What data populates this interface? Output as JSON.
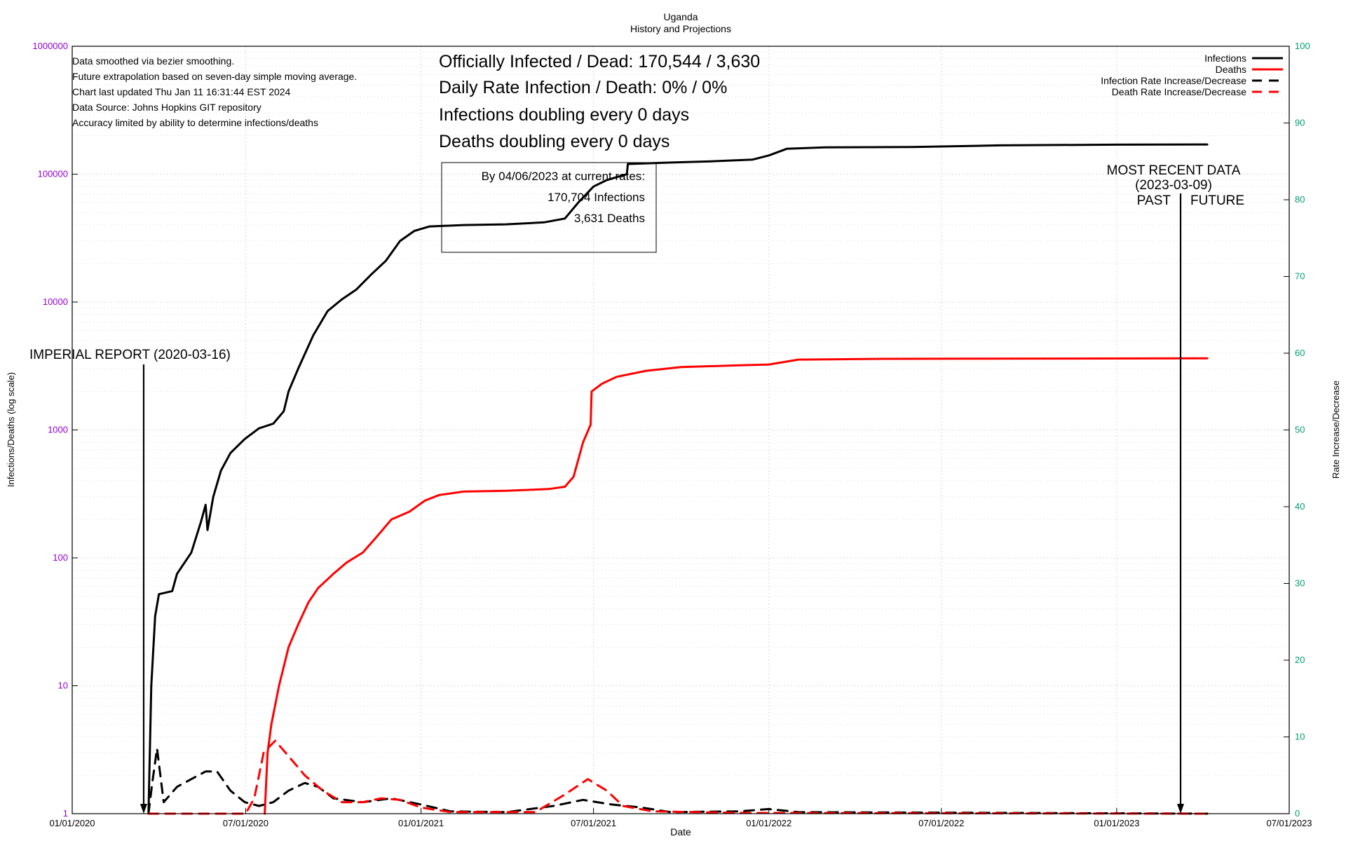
{
  "chart_data": {
    "type": "line",
    "title": "Uganda",
    "subtitle": "History and Projections",
    "xlabel": "Date",
    "ylabel": "Infections/Deaths (log scale)",
    "y2label": "Rate Increase/Decrease",
    "x_range": [
      "2020-01-01",
      "2023-07-01"
    ],
    "x_ticks": [
      "01/01/2020",
      "07/01/2020",
      "01/01/2021",
      "07/01/2021",
      "01/01/2022",
      "07/01/2022",
      "01/01/2023",
      "07/01/2023"
    ],
    "y_scale": "log",
    "ylim": [
      1,
      1000000
    ],
    "y_ticks": [
      "1",
      "10",
      "100",
      "1000",
      "10000",
      "100000",
      "1000000"
    ],
    "y2lim": [
      0,
      100
    ],
    "y2_ticks": [
      "0",
      "10",
      "20",
      "30",
      "40",
      "50",
      "60",
      "70",
      "80",
      "90",
      "100"
    ],
    "grid": true,
    "legend_position": "top-right",
    "notes": [
      "Data smoothed via bezier smoothing.",
      "Future extrapolation based on seven-day simple moving average.",
      "Chart last updated Thu Jan 11 16:31:44 EST 2024",
      "Data Source: Johns Hopkins GIT repository",
      "Accuracy limited by ability to determine infections/deaths"
    ],
    "headline": [
      "Officially Infected / Dead:  170,544 / 3,630",
      "Daily Rate Infection / Death:  0% / 0%",
      "Infections doubling every 0 days",
      "Deaths doubling every 0 days"
    ],
    "projection_box": [
      "By 04/06/2023 at current rates:",
      "170,704 Infections",
      "3,631 Deaths"
    ],
    "annotations": {
      "imperial": {
        "label": "IMPERIAL REPORT (2020-03-16)",
        "date": "2020-03-16"
      },
      "recent": {
        "line1": "MOST RECENT DATA",
        "line2": "(2023-03-09)",
        "past": "PAST",
        "future": "FUTURE",
        "date": "2023-03-09"
      }
    },
    "series": [
      {
        "name": "Infections",
        "axis": "left",
        "color": "#000000",
        "dash": "solid",
        "points": [
          [
            "2020-03-21",
            1
          ],
          [
            "2020-03-24",
            10
          ],
          [
            "2020-03-28",
            35
          ],
          [
            "2020-04-01",
            52
          ],
          [
            "2020-04-15",
            55
          ],
          [
            "2020-04-20",
            75
          ],
          [
            "2020-05-05",
            110
          ],
          [
            "2020-05-15",
            190
          ],
          [
            "2020-05-20",
            260
          ],
          [
            "2020-05-22",
            165
          ],
          [
            "2020-05-28",
            300
          ],
          [
            "2020-06-05",
            480
          ],
          [
            "2020-06-15",
            660
          ],
          [
            "2020-06-30",
            850
          ],
          [
            "2020-07-15",
            1030
          ],
          [
            "2020-07-30",
            1120
          ],
          [
            "2020-08-10",
            1400
          ],
          [
            "2020-08-15",
            2000
          ],
          [
            "2020-08-25",
            3000
          ],
          [
            "2020-09-10",
            5500
          ],
          [
            "2020-09-25",
            8500
          ],
          [
            "2020-10-10",
            10500
          ],
          [
            "2020-10-25",
            12500
          ],
          [
            "2020-11-10",
            16500
          ],
          [
            "2020-11-25",
            21000
          ],
          [
            "2020-12-10",
            30000
          ],
          [
            "2020-12-25",
            36000
          ],
          [
            "2021-01-10",
            39000
          ],
          [
            "2021-02-15",
            40000
          ],
          [
            "2021-03-31",
            40500
          ],
          [
            "2021-05-10",
            42000
          ],
          [
            "2021-06-01",
            45000
          ],
          [
            "2021-06-15",
            60000
          ],
          [
            "2021-07-01",
            80000
          ],
          [
            "2021-07-15",
            90000
          ],
          [
            "2021-08-01",
            98000
          ],
          [
            "2021-08-05",
            100000
          ],
          [
            "2021-08-06",
            120000
          ],
          [
            "2021-09-15",
            123000
          ],
          [
            "2021-11-01",
            126000
          ],
          [
            "2021-12-15",
            130000
          ],
          [
            "2022-01-01",
            140000
          ],
          [
            "2022-01-20",
            158000
          ],
          [
            "2022-03-01",
            162000
          ],
          [
            "2022-06-01",
            163000
          ],
          [
            "2022-09-01",
            168000
          ],
          [
            "2023-01-01",
            170000
          ],
          [
            "2023-04-06",
            170704
          ]
        ]
      },
      {
        "name": "Deaths",
        "axis": "left",
        "color": "#ff0000",
        "dash": "solid",
        "points": [
          [
            "2020-07-21",
            1
          ],
          [
            "2020-07-24",
            3
          ],
          [
            "2020-07-28",
            5
          ],
          [
            "2020-08-05",
            10
          ],
          [
            "2020-08-15",
            20
          ],
          [
            "2020-08-25",
            30
          ],
          [
            "2020-09-05",
            45
          ],
          [
            "2020-09-15",
            58
          ],
          [
            "2020-10-01",
            75
          ],
          [
            "2020-10-15",
            92
          ],
          [
            "2020-11-01",
            110
          ],
          [
            "2020-11-15",
            145
          ],
          [
            "2020-12-01",
            200
          ],
          [
            "2020-12-20",
            230
          ],
          [
            "2021-01-05",
            280
          ],
          [
            "2021-01-20",
            310
          ],
          [
            "2021-02-15",
            330
          ],
          [
            "2021-04-01",
            335
          ],
          [
            "2021-05-15",
            345
          ],
          [
            "2021-06-01",
            360
          ],
          [
            "2021-06-10",
            430
          ],
          [
            "2021-06-20",
            800
          ],
          [
            "2021-06-28",
            1100
          ],
          [
            "2021-06-29",
            2000
          ],
          [
            "2021-07-10",
            2300
          ],
          [
            "2021-07-25",
            2600
          ],
          [
            "2021-08-25",
            2900
          ],
          [
            "2021-10-01",
            3100
          ],
          [
            "2021-12-01",
            3200
          ],
          [
            "2022-01-01",
            3250
          ],
          [
            "2022-02-01",
            3550
          ],
          [
            "2022-05-01",
            3600
          ],
          [
            "2023-04-06",
            3631
          ]
        ]
      },
      {
        "name": "Infection Rate Increase/Decrease",
        "axis": "right",
        "color": "#000000",
        "dash": "dashed",
        "points": [
          [
            "2020-03-21",
            0
          ],
          [
            "2020-03-25",
            4
          ],
          [
            "2020-03-30",
            8.5
          ],
          [
            "2020-04-06",
            1.5
          ],
          [
            "2020-04-20",
            3.5
          ],
          [
            "2020-05-05",
            4.5
          ],
          [
            "2020-05-20",
            5.5
          ],
          [
            "2020-06-01",
            5.5
          ],
          [
            "2020-06-15",
            3
          ],
          [
            "2020-06-30",
            1.5
          ],
          [
            "2020-07-15",
            1
          ],
          [
            "2020-07-30",
            1.5
          ],
          [
            "2020-08-15",
            3
          ],
          [
            "2020-09-01",
            4
          ],
          [
            "2020-09-15",
            3.5
          ],
          [
            "2020-10-01",
            2
          ],
          [
            "2020-11-01",
            1.5
          ],
          [
            "2020-12-01",
            2
          ],
          [
            "2021-01-01",
            1.2
          ],
          [
            "2021-02-01",
            0.3
          ],
          [
            "2021-04-01",
            0.2
          ],
          [
            "2021-05-20",
            1
          ],
          [
            "2021-06-20",
            1.8
          ],
          [
            "2021-07-20",
            1.2
          ],
          [
            "2021-08-20",
            0.8
          ],
          [
            "2021-09-20",
            0.2
          ],
          [
            "2021-12-01",
            0.3
          ],
          [
            "2022-01-01",
            0.6
          ],
          [
            "2022-02-01",
            0.2
          ],
          [
            "2023-04-06",
            0
          ]
        ]
      },
      {
        "name": "Death Rate Increase/Decrease",
        "axis": "right",
        "color": "#ff0000",
        "dash": "dashed",
        "points": [
          [
            "2020-03-21",
            0
          ],
          [
            "2020-07-01",
            0
          ],
          [
            "2020-07-10",
            2
          ],
          [
            "2020-07-20",
            8
          ],
          [
            "2020-08-01",
            9.5
          ],
          [
            "2020-08-15",
            7.5
          ],
          [
            "2020-09-01",
            5
          ],
          [
            "2020-09-20",
            3
          ],
          [
            "2020-10-10",
            1.5
          ],
          [
            "2020-11-01",
            1.5
          ],
          [
            "2020-11-20",
            2
          ],
          [
            "2020-12-10",
            1.8
          ],
          [
            "2021-01-01",
            0.8
          ],
          [
            "2021-02-01",
            0.2
          ],
          [
            "2021-05-01",
            0.2
          ],
          [
            "2021-06-01",
            2.5
          ],
          [
            "2021-06-25",
            4.5
          ],
          [
            "2021-07-15",
            3
          ],
          [
            "2021-08-01",
            1
          ],
          [
            "2021-09-01",
            0.3
          ],
          [
            "2021-12-01",
            0.1
          ],
          [
            "2023-04-06",
            0
          ]
        ]
      }
    ]
  }
}
